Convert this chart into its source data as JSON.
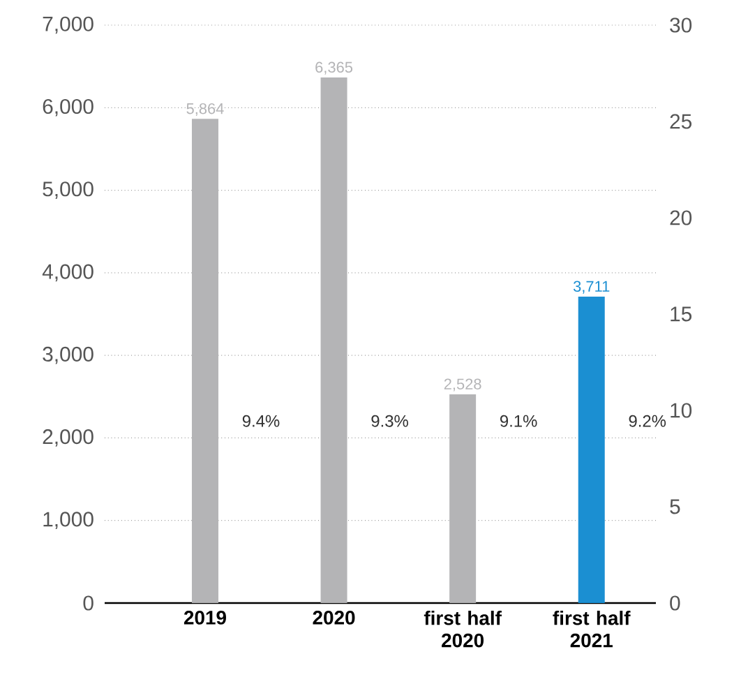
{
  "chart_data": {
    "type": "bar",
    "categories": [
      "2019",
      "2020",
      "first half 2020",
      "first half 2021"
    ],
    "ylim": [
      0,
      7000
    ],
    "yticks": [
      0,
      {
        "value": 1000,
        "label": "1,000"
      },
      {
        "value": 2000,
        "label": "2,000"
      },
      {
        "value": 3000,
        "label": "3,000"
      },
      {
        "value": 4000,
        "label": "4,000"
      },
      {
        "value": 5000,
        "label": "5,000"
      },
      {
        "value": 6000,
        "label": "6,000"
      },
      {
        "value": 7000,
        "label": "7,000"
      }
    ],
    "y2lim": [
      0,
      30
    ],
    "y2ticks": [
      0,
      5,
      10,
      15,
      20,
      25,
      30
    ],
    "grid": "y",
    "series": [
      {
        "colors": [
          "#b4b4b6",
          "#b4b4b6",
          "#b4b4b6",
          "#1b8fd2"
        ],
        "values": [
          5864,
          6365,
          2528,
          3711
        ],
        "value_labels": [
          "5,864",
          "6,365",
          "2,528",
          "3,711"
        ]
      }
    ],
    "annotations": [
      "9.4%",
      "9.3%",
      "9.1%",
      "9.2%"
    ]
  }
}
